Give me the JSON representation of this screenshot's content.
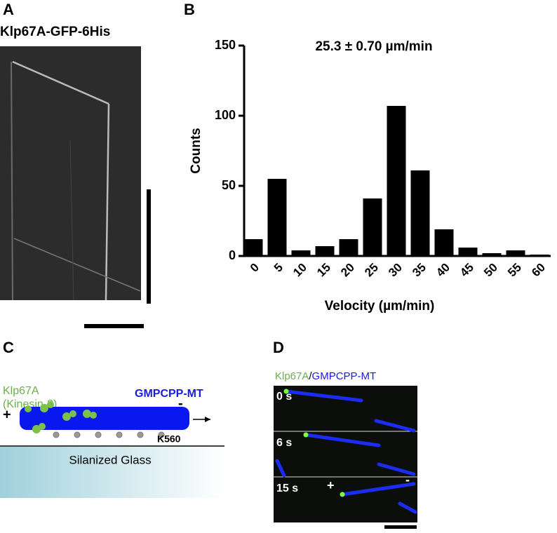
{
  "panel_a": {
    "label": "A",
    "title": "Klp67A-GFP-6His"
  },
  "chart_data": {
    "label": "B",
    "type": "bar",
    "annotation": "25.3 ± 0.70 µm/min",
    "xlabel": "Velocity (µm/min)",
    "ylabel": "Counts",
    "categories": [
      "0",
      "5",
      "10",
      "15",
      "20",
      "25",
      "30",
      "35",
      "40",
      "45",
      "50",
      "55",
      "60"
    ],
    "values": [
      12,
      55,
      4,
      7,
      12,
      41,
      107,
      61,
      19,
      6,
      2,
      4,
      1
    ],
    "color": "#000000",
    "ylim": [
      0,
      150
    ],
    "yticks": [
      0,
      50,
      100,
      150
    ],
    "grid": false
  },
  "panel_c": {
    "label": "C",
    "motor_name": "Klp67A",
    "motor_family": "(Kinesin-8)",
    "microtubule": "GMPCPP-MT",
    "plus_end": "+",
    "minus_end": "-",
    "anchor": "K560",
    "surface": "Silanized Glass"
  },
  "panel_d": {
    "label": "D",
    "channel_1": "Klp67A",
    "separator": "/",
    "channel_2": "GMPCPP-MT",
    "frames": [
      "0 s",
      "6 s",
      "15 s"
    ],
    "plus_end": "+",
    "minus_end": "-"
  }
}
